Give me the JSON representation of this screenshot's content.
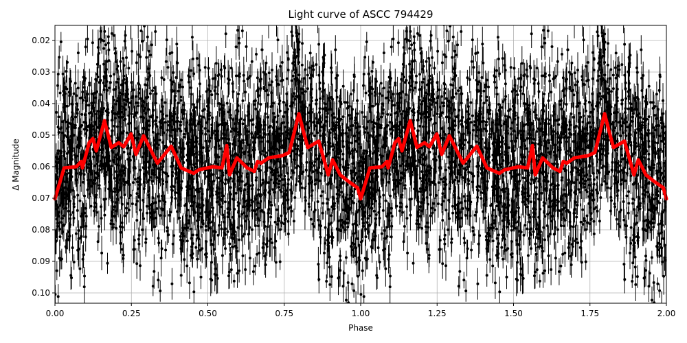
{
  "chart_data": {
    "type": "scatter",
    "title": "Light curve of ASCC 794429",
    "xlabel": "Phase",
    "ylabel": "Δ Magnitude",
    "xlim": [
      0.0,
      2.0
    ],
    "ylim": [
      0.1035,
      0.0153
    ],
    "y_inverted": true,
    "grid": true,
    "x_ticks": [
      "0.00",
      "0.25",
      "0.50",
      "0.75",
      "1.00",
      "1.25",
      "1.50",
      "1.75",
      "2.00"
    ],
    "y_ticks": [
      "0.02",
      "0.03",
      "0.04",
      "0.05",
      "0.06",
      "0.07",
      "0.08",
      "0.09",
      "0.10"
    ],
    "series": [
      {
        "name": "observations",
        "style": "black points with vertical error bars",
        "color": "#000000",
        "description": "Dense phase-folded photometry, scatter spanning roughly 0.02 to 0.10 mag across all phases, repeated over two cycles"
      },
      {
        "name": "binned model",
        "style": "thick red line",
        "color": "#ff0000",
        "x": [
          0.0,
          0.03,
          0.07,
          0.086,
          0.09,
          0.112,
          0.124,
          0.135,
          0.162,
          0.184,
          0.209,
          0.225,
          0.249,
          0.265,
          0.29,
          0.315,
          0.335,
          0.38,
          0.413,
          0.454,
          0.47,
          0.517,
          0.546,
          0.562,
          0.571,
          0.595,
          0.629,
          0.652,
          0.663,
          0.674,
          0.699,
          0.744,
          0.766,
          0.798,
          0.811,
          0.814,
          0.827,
          0.863,
          0.894,
          0.908,
          0.933,
          0.962,
          0.99,
          1.0
        ],
        "y": [
          0.0702,
          0.0604,
          0.06,
          0.0583,
          0.0604,
          0.0524,
          0.0511,
          0.055,
          0.0454,
          0.0539,
          0.0524,
          0.0537,
          0.0496,
          0.0561,
          0.0502,
          0.055,
          0.0589,
          0.0535,
          0.0604,
          0.0621,
          0.061,
          0.06,
          0.0604,
          0.0533,
          0.0626,
          0.0572,
          0.0604,
          0.0615,
          0.0583,
          0.0589,
          0.0572,
          0.0565,
          0.0555,
          0.0432,
          0.0482,
          0.0493,
          0.0539,
          0.0519,
          0.0626,
          0.0578,
          0.0626,
          0.0648,
          0.0667,
          0.0702
        ]
      }
    ]
  }
}
